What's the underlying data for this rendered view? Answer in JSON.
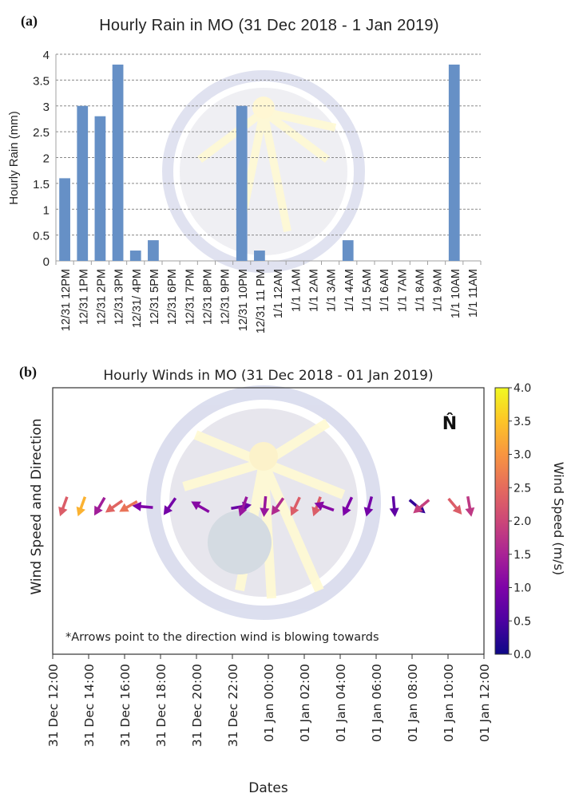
{
  "panels": {
    "a": "(a)",
    "b": "(b)"
  },
  "chart_data": [
    {
      "type": "bar",
      "title": "Hourly Rain in MO (31 Dec 2018 - 1 Jan 2019)",
      "xlabel": "",
      "ylabel": "Hourly Rain (mm)",
      "ylim": [
        0,
        4
      ],
      "yticks": [
        "0",
        "0.5",
        "1",
        "1.5",
        "2",
        "2.5",
        "3",
        "3.5",
        "4"
      ],
      "grid": "horizontal dashed",
      "bar_color": "#6690c6",
      "categories": [
        "12/31 12PM",
        "12/31 1PM",
        "12/31 2PM",
        "12/31 3PM",
        "12/31/ 4PM",
        "12/31 5PM",
        "12/31 6PM",
        "12/31 7PM",
        "12/31 8PM",
        "12/31 9PM",
        "12/31 10PM",
        "12/31 11 PM",
        "1/1 12AM",
        "1/1 1AM",
        "1/1 2AM",
        "1/1 3AM",
        "1/1 4AM",
        "1/1 5AM",
        "1/1 6AM",
        "1/1 7AM",
        "1/1 8AM",
        "1/1 9AM",
        "1/1 10AM",
        "1/1 11AM"
      ],
      "values": [
        1.6,
        3.0,
        2.8,
        3.8,
        0.2,
        0.4,
        0,
        0,
        0,
        0,
        3.0,
        0.2,
        0,
        0,
        0,
        0,
        0.4,
        0,
        0,
        0,
        0,
        0,
        3.8,
        0
      ]
    },
    {
      "type": "quiver",
      "title": "Hourly Winds in MO (31 Dec 2018 - 01 Jan 2019)",
      "xlabel": "Dates",
      "ylabel": "Wind Speed and Direction",
      "xticks": [
        "31 Dec 12:00",
        "31 Dec 14:00",
        "31 Dec 16:00",
        "31 Dec 18:00",
        "31 Dec 20:00",
        "31 Dec 22:00",
        "01 Jan 00:00",
        "01 Jan 02:00",
        "01 Jan 04:00",
        "01 Jan 06:00",
        "01 Jan 08:00",
        "01 Jan 10:00",
        "01 Jan 12:00"
      ],
      "xlim_hours": [
        0,
        24
      ],
      "north_marker": "N̂",
      "annotation": "*Arrows point to the direction wind is blowing towards",
      "colorbar": {
        "label": "Wind Speed (m/s)",
        "range": [
          0.0,
          4.0
        ],
        "ticks": [
          "0.0",
          "0.5",
          "1.0",
          "1.5",
          "2.0",
          "2.5",
          "3.0",
          "3.5",
          "4.0"
        ],
        "colormap": "plasma"
      },
      "arrows": [
        {
          "hour": 0.6,
          "toward_deg": 200,
          "speed": 2.3
        },
        {
          "hour": 1.6,
          "toward_deg": 200,
          "speed": 3.3
        },
        {
          "hour": 2.6,
          "toward_deg": 210,
          "speed": 1.4
        },
        {
          "hour": 3.4,
          "toward_deg": 235,
          "speed": 2.4
        },
        {
          "hour": 4.2,
          "toward_deg": 240,
          "speed": 2.6
        },
        {
          "hour": 5.0,
          "toward_deg": 275,
          "speed": 1.0
        },
        {
          "hour": 6.5,
          "toward_deg": 215,
          "speed": 0.9
        },
        {
          "hour": 8.2,
          "toward_deg": 300,
          "speed": 1.1
        },
        {
          "hour": 10.5,
          "toward_deg": 80,
          "speed": 0.8
        },
        {
          "hour": 10.6,
          "toward_deg": 200,
          "speed": 1.3
        },
        {
          "hour": 11.8,
          "toward_deg": 185,
          "speed": 1.3
        },
        {
          "hour": 12.5,
          "toward_deg": 215,
          "speed": 1.6
        },
        {
          "hour": 13.5,
          "toward_deg": 205,
          "speed": 2.3
        },
        {
          "hour": 14.7,
          "toward_deg": 200,
          "speed": 2.3
        },
        {
          "hour": 15.1,
          "toward_deg": 290,
          "speed": 1.1
        },
        {
          "hour": 16.4,
          "toward_deg": 205,
          "speed": 1.0
        },
        {
          "hour": 17.6,
          "toward_deg": 195,
          "speed": 0.9
        },
        {
          "hour": 19.0,
          "toward_deg": 175,
          "speed": 0.7
        },
        {
          "hour": 20.3,
          "toward_deg": 130,
          "speed": 0.3
        },
        {
          "hour": 20.5,
          "toward_deg": 230,
          "speed": 1.9
        },
        {
          "hour": 22.4,
          "toward_deg": 140,
          "speed": 2.3
        },
        {
          "hour": 23.2,
          "toward_deg": 170,
          "speed": 1.8
        }
      ]
    }
  ]
}
